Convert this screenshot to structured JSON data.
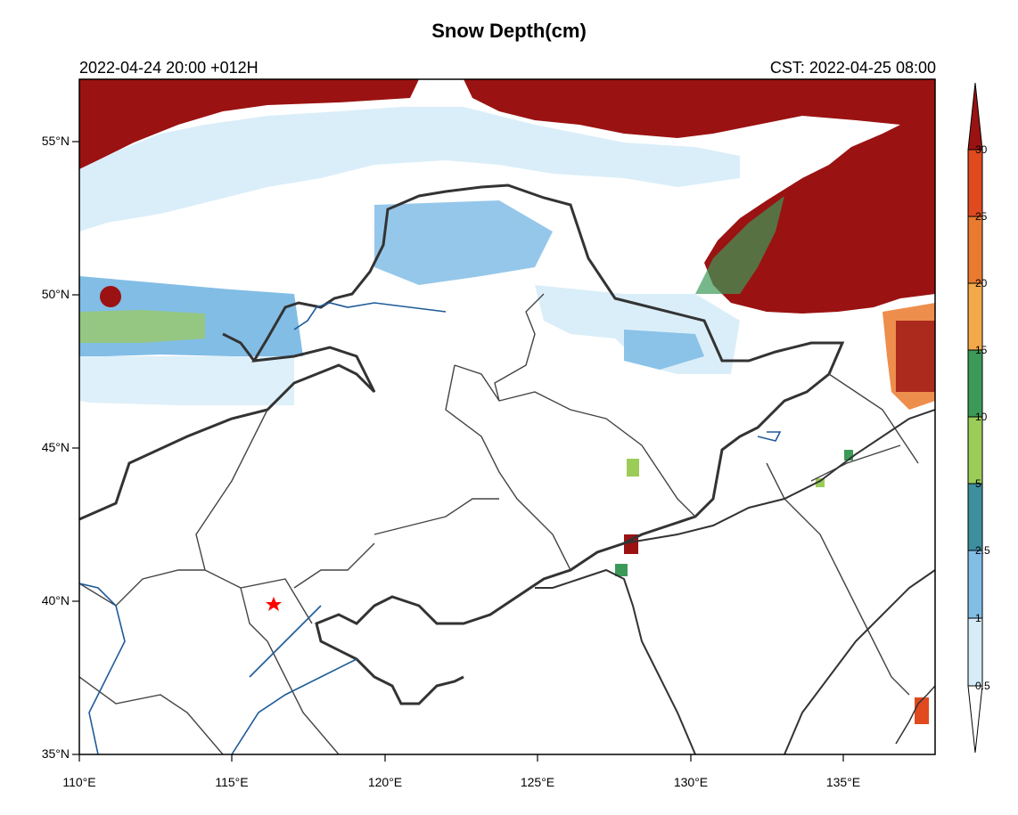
{
  "map": {
    "title": "Snow Depth(cm)",
    "subtitle_left": "2022-04-24 20:00 +012H",
    "subtitle_right": "CST: 2022-04-25 08:00",
    "lon_range": [
      110,
      138
    ],
    "lat_range": [
      35,
      57
    ],
    "lat_ticks": [
      "35°N",
      "40°N",
      "45°N",
      "50°N",
      "55°N"
    ],
    "lon_ticks": [
      "110°E",
      "115°E",
      "120°E",
      "125°E",
      "130°E",
      "135°E"
    ],
    "marker": {
      "name": "star",
      "color": "#ff0000"
    },
    "border_color": "#333333",
    "river_color": "#1f5a99"
  },
  "colorbar": {
    "levels": [
      "0.5",
      "1",
      "2.5",
      "5",
      "10",
      "15",
      "20",
      "25",
      "30"
    ],
    "colors": [
      "#ffffff",
      "#d6ecf8",
      "#82bde6",
      "#3e8f9e",
      "#3c9a58",
      "#9ccc58",
      "#f3a94a",
      "#ea7a2e",
      "#e04a1e",
      "#9b1212"
    ]
  }
}
